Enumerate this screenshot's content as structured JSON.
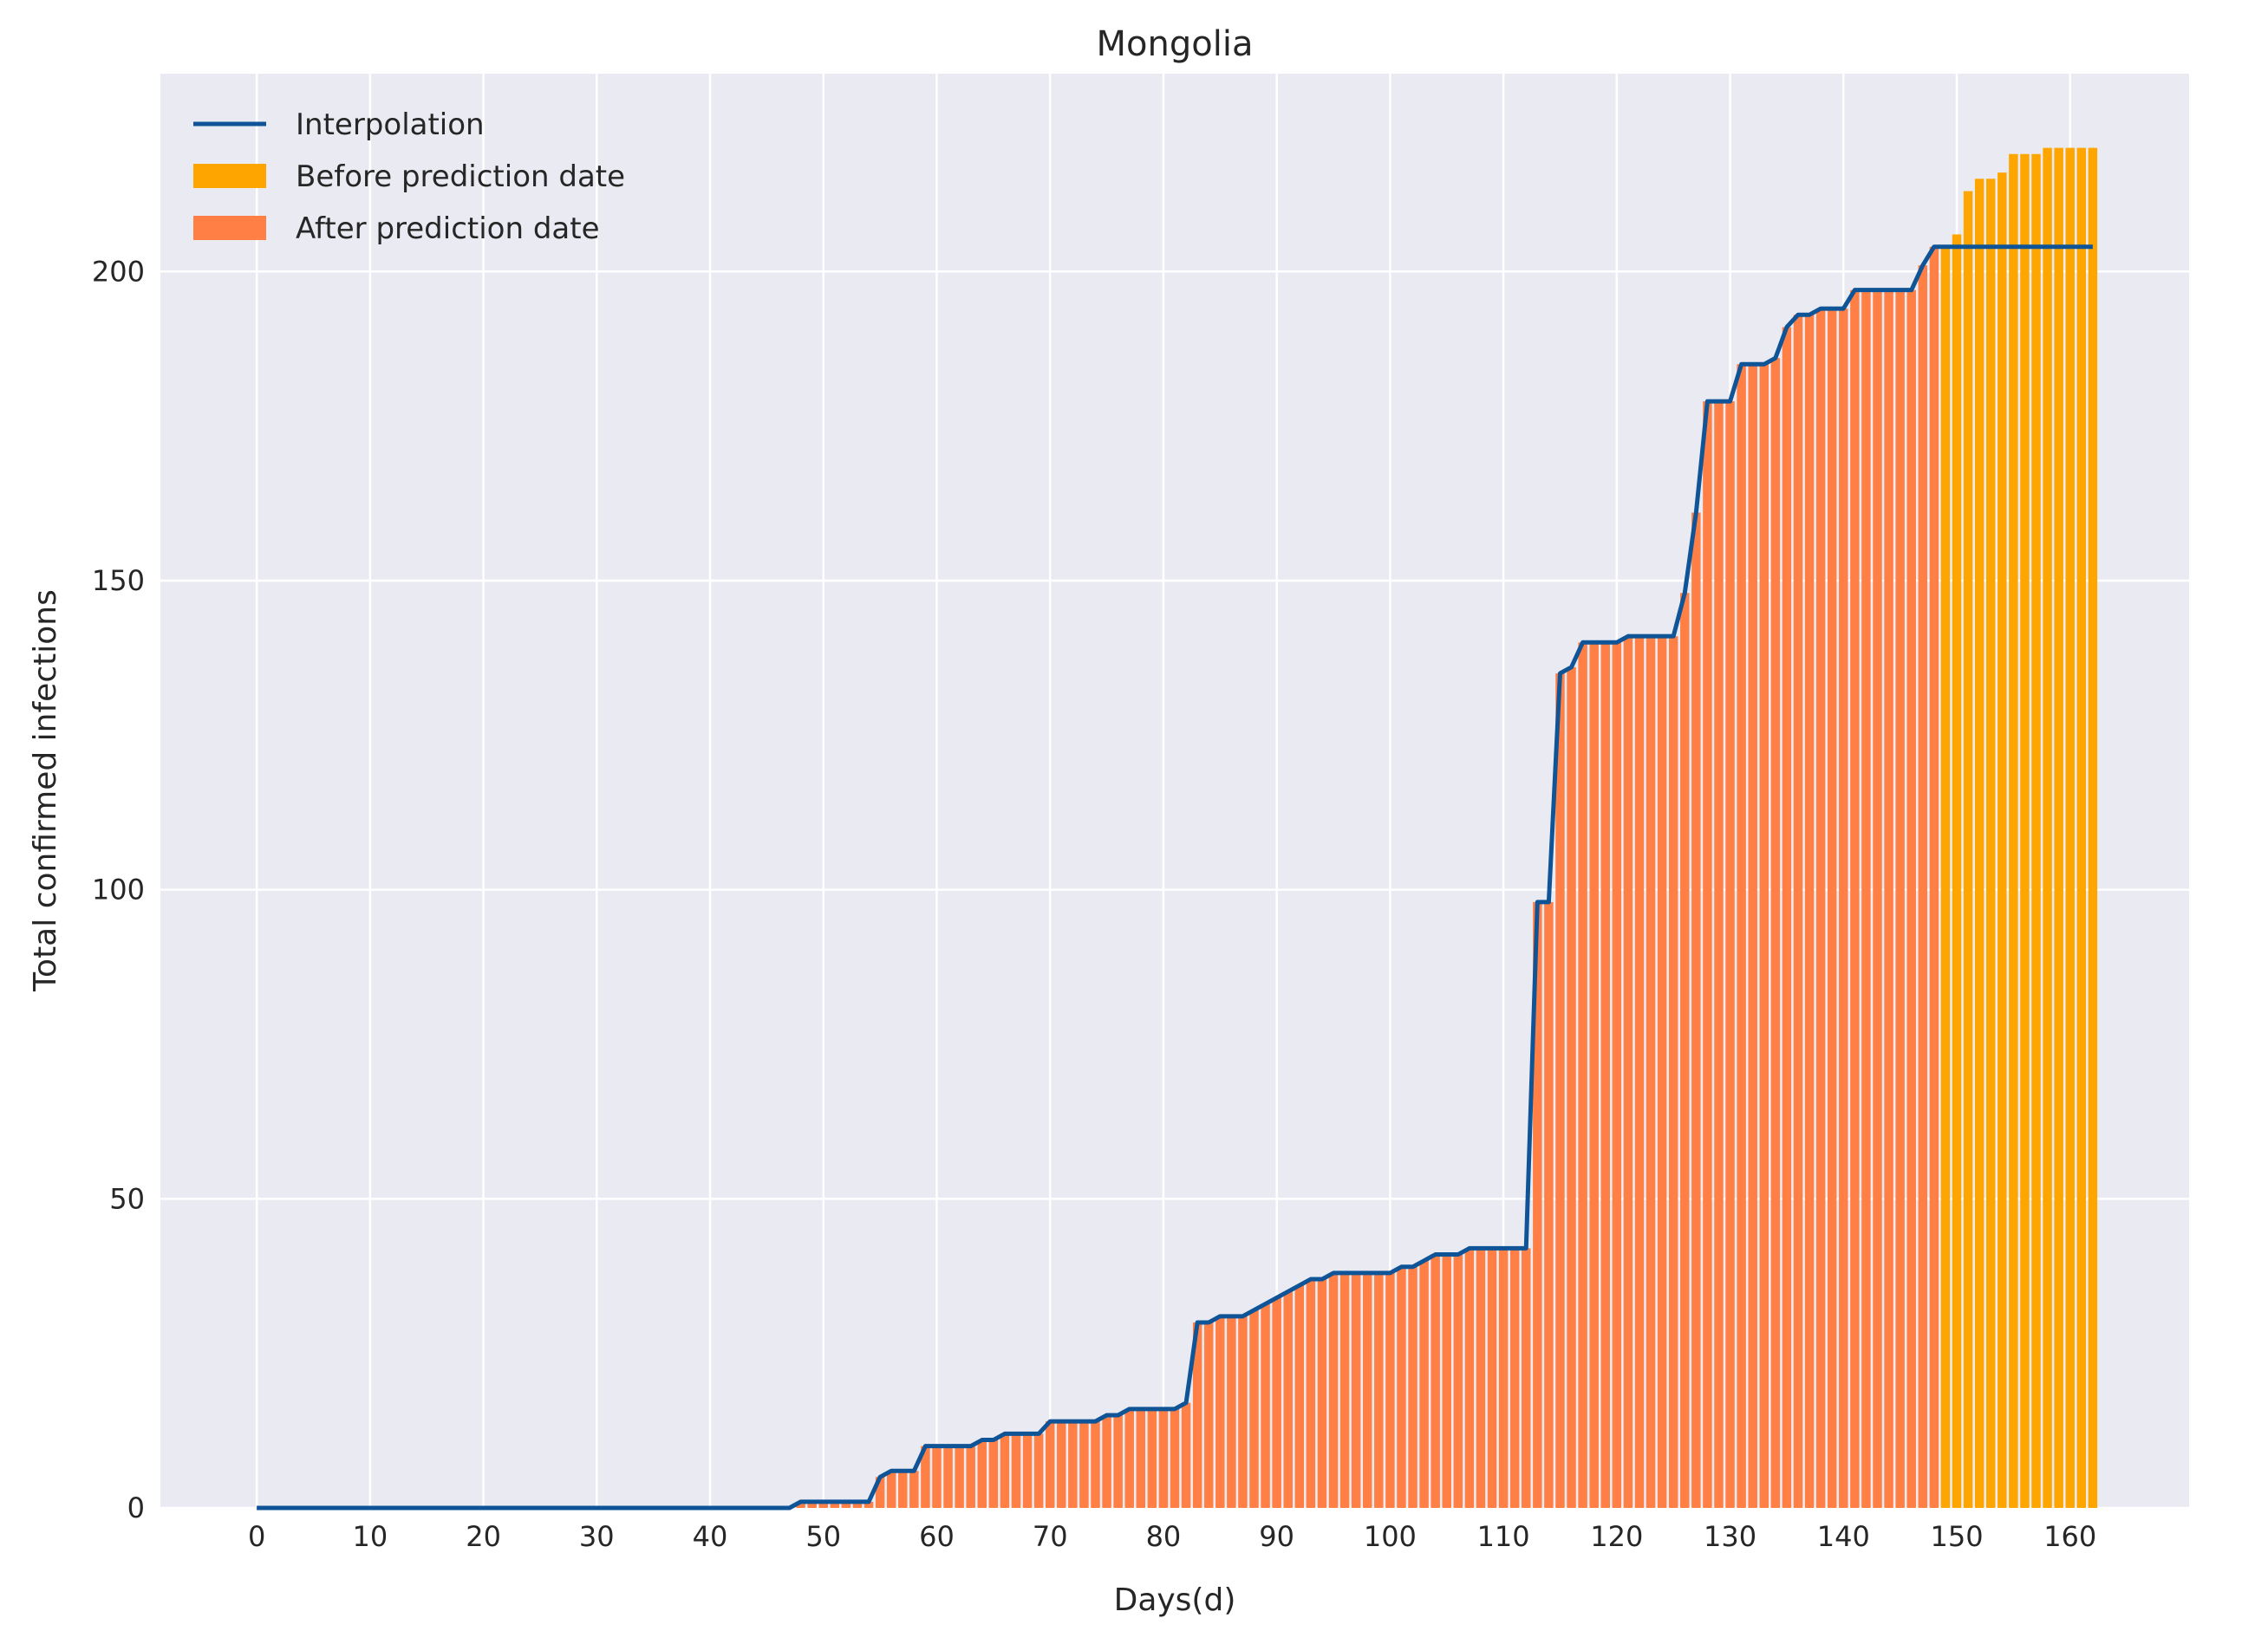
{
  "chart_data": {
    "type": "bar",
    "title": "Mongolia",
    "xlabel": "Days(d)",
    "ylabel": "Total confirmed infections",
    "xlim": [
      -8.5,
      170.5
    ],
    "ylim": [
      0,
      232
    ],
    "xticks": [
      0,
      10,
      20,
      30,
      40,
      50,
      60,
      70,
      80,
      90,
      100,
      110,
      120,
      130,
      140,
      150,
      160
    ],
    "yticks": [
      0,
      50,
      100,
      150,
      200
    ],
    "grid": true,
    "legend_position": "top-left",
    "prediction_split_day": 149,
    "legend": [
      {
        "key": "line",
        "label": "Interpolation",
        "color": "#0f5496"
      },
      {
        "key": "before",
        "label": "Before prediction date",
        "color": "#ffa500"
      },
      {
        "key": "after",
        "label": "After prediction date",
        "color": "#ff7f45"
      }
    ],
    "series": [
      {
        "name": "Before prediction date / After prediction date",
        "x_start": 0,
        "values": [
          0,
          0,
          0,
          0,
          0,
          0,
          0,
          0,
          0,
          0,
          0,
          0,
          0,
          0,
          0,
          0,
          0,
          0,
          0,
          0,
          0,
          0,
          0,
          0,
          0,
          0,
          0,
          0,
          0,
          0,
          0,
          0,
          0,
          0,
          0,
          0,
          0,
          0,
          0,
          0,
          0,
          0,
          0,
          0,
          0,
          0,
          0,
          0,
          1,
          1,
          1,
          1,
          1,
          1,
          1,
          5,
          6,
          6,
          6,
          10,
          10,
          10,
          10,
          10,
          11,
          11,
          12,
          12,
          12,
          12,
          14,
          14,
          14,
          14,
          14,
          15,
          15,
          16,
          16,
          16,
          16,
          16,
          17,
          30,
          30,
          31,
          31,
          31,
          32,
          33,
          34,
          35,
          36,
          37,
          37,
          38,
          38,
          38,
          38,
          38,
          38,
          39,
          39,
          40,
          41,
          41,
          41,
          42,
          42,
          42,
          42,
          42,
          42,
          98,
          98,
          135,
          136,
          140,
          140,
          140,
          140,
          141,
          141,
          141,
          141,
          141,
          148,
          161,
          179,
          179,
          179,
          185,
          185,
          185,
          186,
          191,
          193,
          193,
          194,
          194,
          194,
          197,
          197,
          197,
          197,
          197,
          197,
          201,
          204,
          204,
          206,
          213,
          215,
          215,
          216,
          219,
          219,
          219,
          220,
          220,
          220,
          220,
          220
        ]
      },
      {
        "name": "Interpolation",
        "x_start": 0,
        "values": [
          0,
          0,
          0,
          0,
          0,
          0,
          0,
          0,
          0,
          0,
          0,
          0,
          0,
          0,
          0,
          0,
          0,
          0,
          0,
          0,
          0,
          0,
          0,
          0,
          0,
          0,
          0,
          0,
          0,
          0,
          0,
          0,
          0,
          0,
          0,
          0,
          0,
          0,
          0,
          0,
          0,
          0,
          0,
          0,
          0,
          0,
          0,
          0,
          1,
          1,
          1,
          1,
          1,
          1,
          1,
          5,
          6,
          6,
          6,
          10,
          10,
          10,
          10,
          10,
          11,
          11,
          12,
          12,
          12,
          12,
          14,
          14,
          14,
          14,
          14,
          15,
          15,
          16,
          16,
          16,
          16,
          16,
          17,
          30,
          30,
          31,
          31,
          31,
          32,
          33,
          34,
          35,
          36,
          37,
          37,
          38,
          38,
          38,
          38,
          38,
          38,
          39,
          39,
          40,
          41,
          41,
          41,
          42,
          42,
          42,
          42,
          42,
          42,
          98,
          98,
          135,
          136,
          140,
          140,
          140,
          140,
          141,
          141,
          141,
          141,
          141,
          148,
          161,
          179,
          179,
          179,
          185,
          185,
          185,
          186,
          191,
          193,
          193,
          194,
          194,
          194,
          197,
          197,
          197,
          197,
          197,
          197,
          201,
          204,
          204,
          204,
          204,
          204,
          204,
          204,
          204,
          204,
          204,
          204,
          204,
          204,
          204,
          204
        ]
      }
    ]
  }
}
